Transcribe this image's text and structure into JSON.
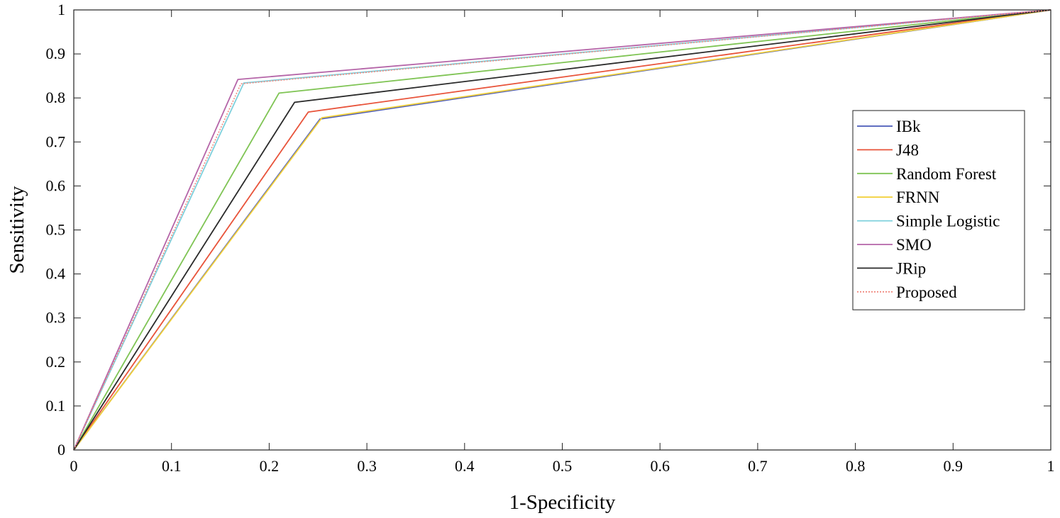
{
  "chart_data": {
    "type": "line",
    "title": "",
    "xlabel": "1-Specificity",
    "ylabel": "Sensitivity",
    "xlim": [
      0,
      1
    ],
    "ylim": [
      0,
      1
    ],
    "xticks": [
      "0",
      "0.1",
      "0.2",
      "0.3",
      "0.4",
      "0.5",
      "0.6",
      "0.7",
      "0.8",
      "0.9",
      "1"
    ],
    "yticks": [
      "0",
      "0.1",
      "0.2",
      "0.3",
      "0.4",
      "0.5",
      "0.6",
      "0.7",
      "0.8",
      "0.9",
      "1"
    ],
    "grid": false,
    "legend_position": "right",
    "series": [
      {
        "name": "IBk",
        "color": "#4a5ab8",
        "dash": "solid",
        "x": [
          0,
          0.252,
          1
        ],
        "y": [
          0,
          0.752,
          1
        ]
      },
      {
        "name": "J48",
        "color": "#e8533a",
        "dash": "solid",
        "x": [
          0,
          0.24,
          1
        ],
        "y": [
          0,
          0.768,
          1
        ]
      },
      {
        "name": "Random Forest",
        "color": "#7fc454",
        "dash": "solid",
        "x": [
          0,
          0.21,
          1
        ],
        "y": [
          0,
          0.811,
          1
        ]
      },
      {
        "name": "FRNN",
        "color": "#f2d03a",
        "dash": "solid",
        "x": [
          0,
          0.254,
          1
        ],
        "y": [
          0,
          0.755,
          1
        ]
      },
      {
        "name": "Simple Logistic",
        "color": "#7ed0dc",
        "dash": "solid",
        "x": [
          0,
          0.174,
          1
        ],
        "y": [
          0,
          0.834,
          1
        ]
      },
      {
        "name": "SMO",
        "color": "#b565a8",
        "dash": "solid",
        "x": [
          0,
          0.168,
          1
        ],
        "y": [
          0,
          0.842,
          1
        ]
      },
      {
        "name": "JRip",
        "color": "#2a2a2a",
        "dash": "solid",
        "x": [
          0,
          0.226,
          1
        ],
        "y": [
          0,
          0.79,
          1
        ]
      },
      {
        "name": "Proposed",
        "color": "#f08a80",
        "dash": "dotted",
        "x": [
          0,
          0.171,
          1
        ],
        "y": [
          0,
          0.832,
          1
        ]
      }
    ]
  }
}
